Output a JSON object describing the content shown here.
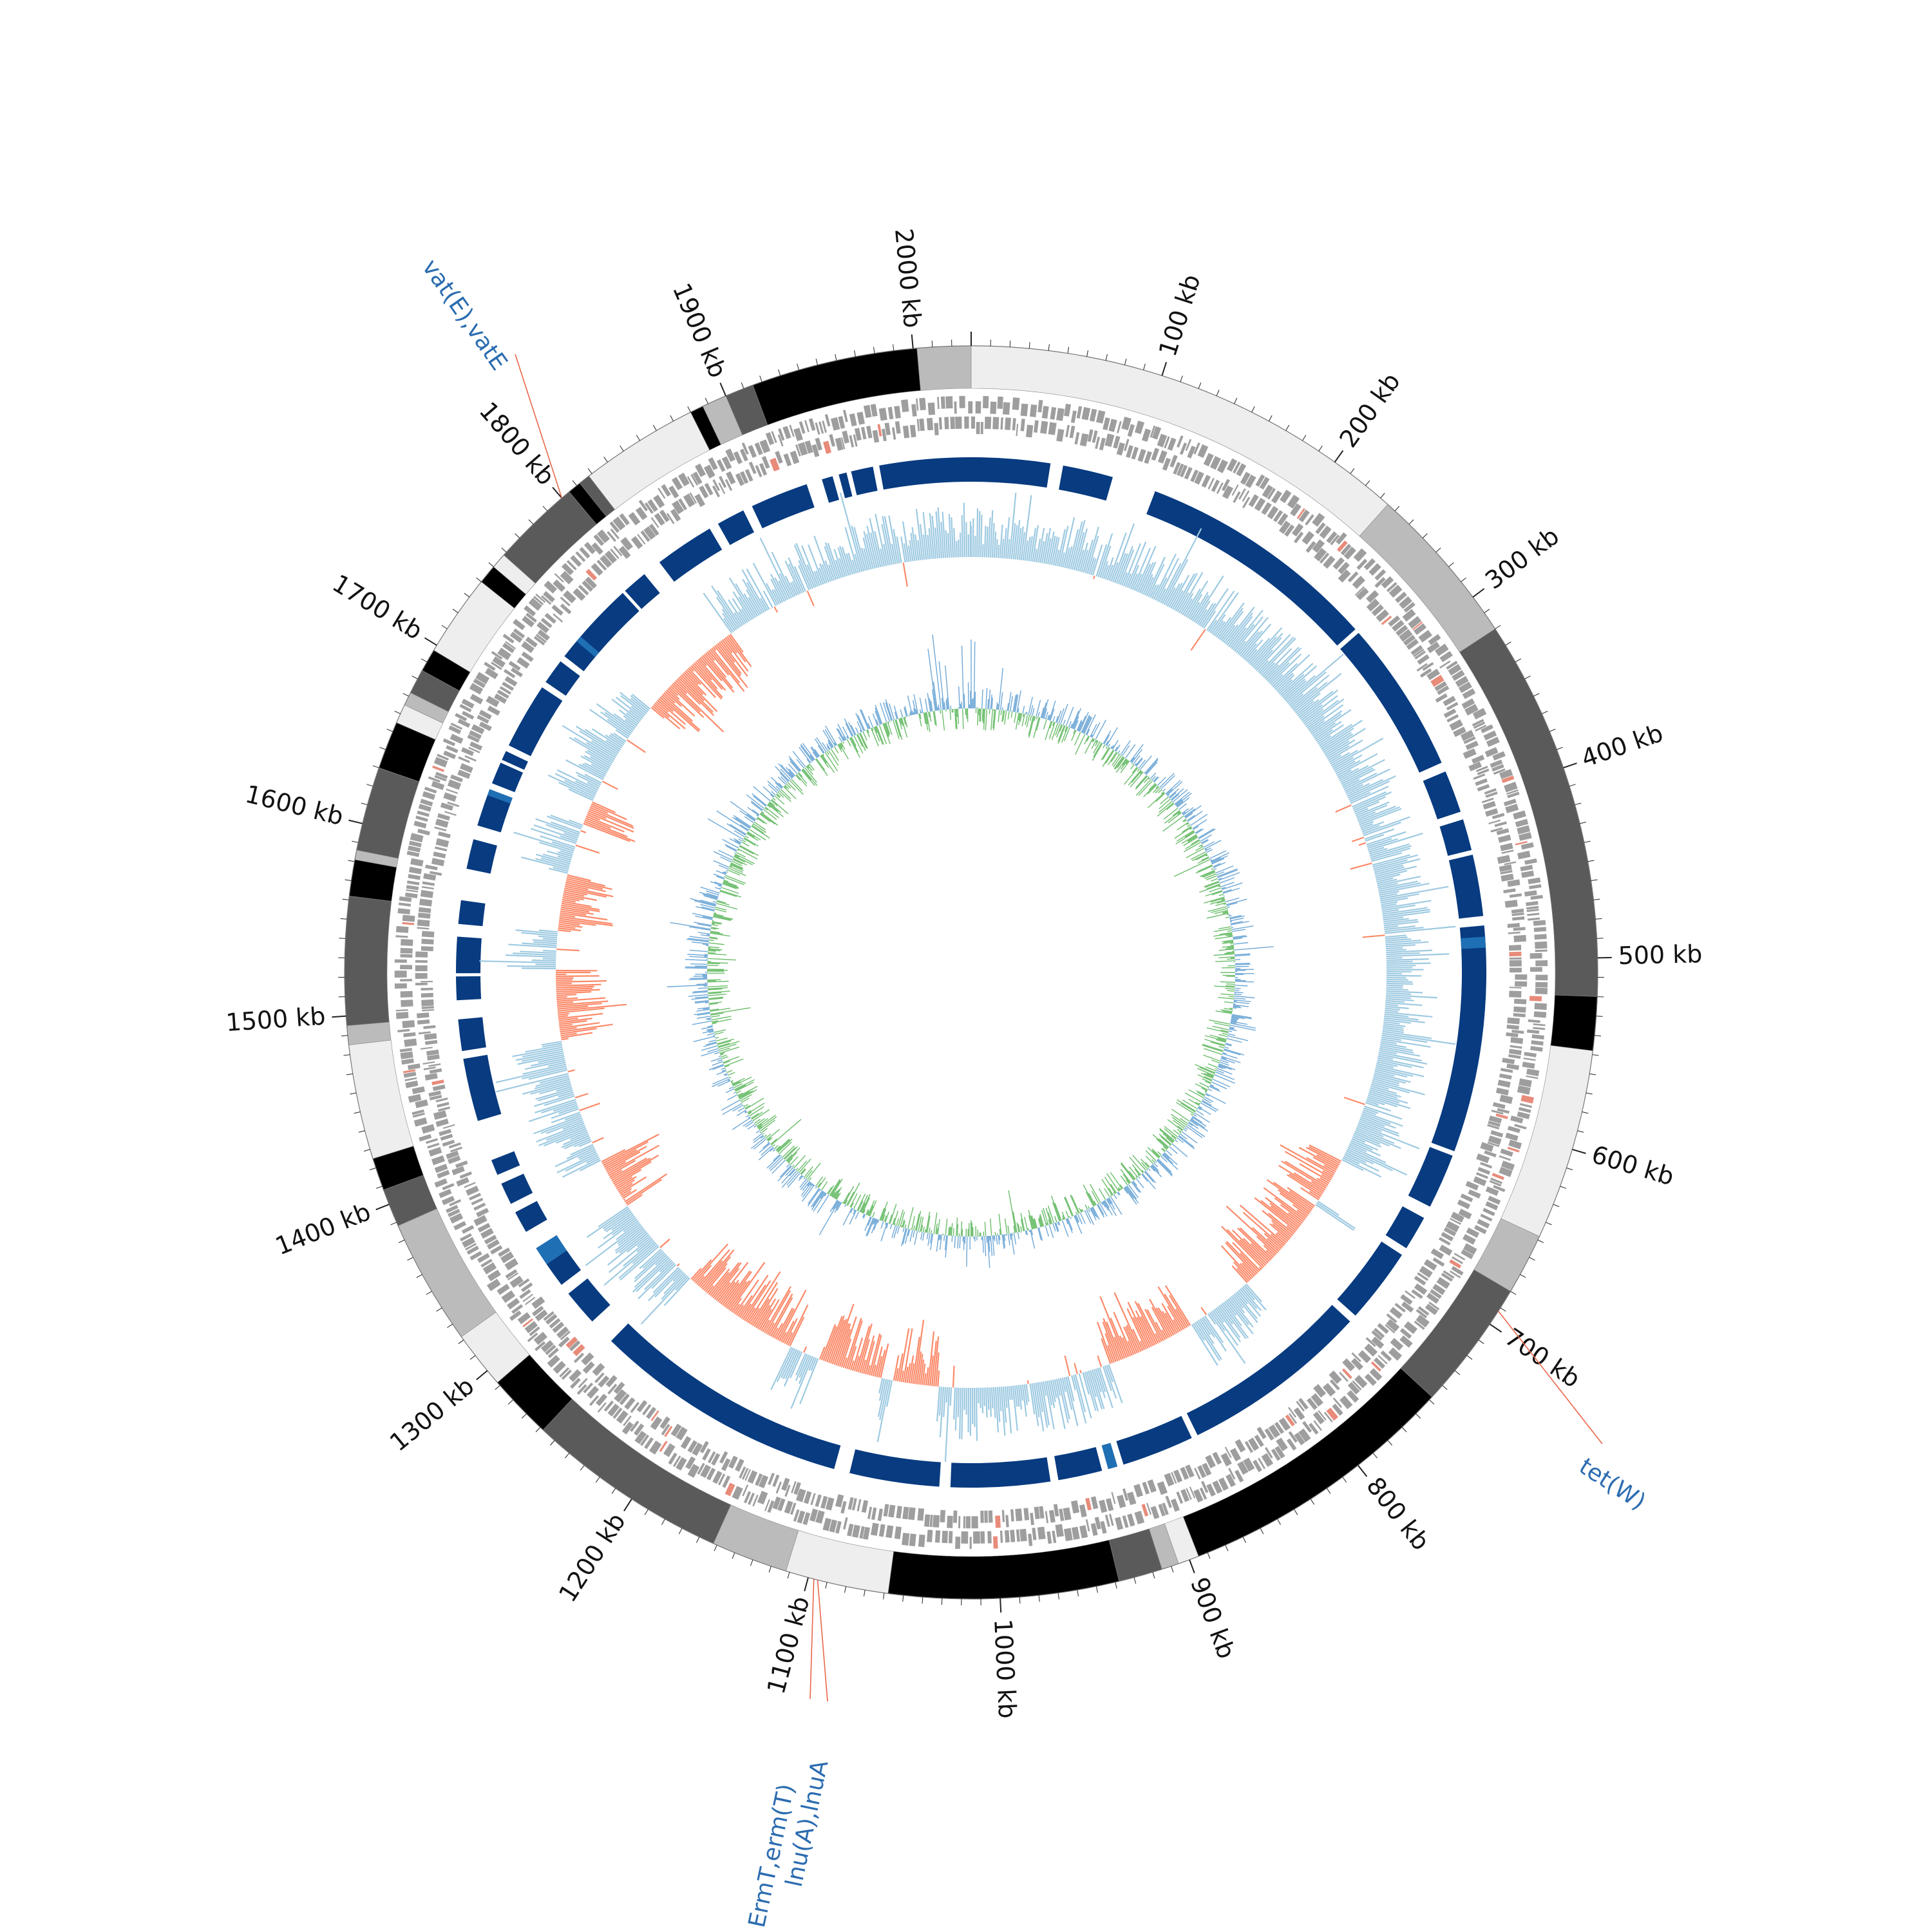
{
  "genome": {
    "size_kb": 2030,
    "tick_step_kb": 100,
    "tick_labels": [
      "100 kb",
      "200 kb",
      "300 kb",
      "400 kb",
      "500 kb",
      "600 kb",
      "700 kb",
      "800 kb",
      "900 kb",
      "1000 kb",
      "1100 kb",
      "1200 kb",
      "1300 kb",
      "1400 kb",
      "1500 kb",
      "1600 kb",
      "1700 kb",
      "1800 kb",
      "1900 kb",
      "2000 kb"
    ]
  },
  "contigs": [
    {
      "start": 0,
      "end": 235,
      "shade": "#eeeeee"
    },
    {
      "start": 235,
      "end": 320,
      "shade": "#bbbbbb"
    },
    {
      "start": 320,
      "end": 520,
      "shade": "#5a5a5a"
    },
    {
      "start": 520,
      "end": 548,
      "shade": "#000000"
    },
    {
      "start": 548,
      "end": 648,
      "shade": "#eeeeee"
    },
    {
      "start": 648,
      "end": 680,
      "shade": "#bbbbbb"
    },
    {
      "start": 680,
      "end": 748,
      "shade": "#5a5a5a"
    },
    {
      "start": 748,
      "end": 895,
      "shade": "#000000"
    },
    {
      "start": 895,
      "end": 906,
      "shade": "#eeeeee"
    },
    {
      "start": 906,
      "end": 915,
      "shade": "#bbbbbb"
    },
    {
      "start": 915,
      "end": 938,
      "shade": "#5a5a5a"
    },
    {
      "start": 938,
      "end": 1058,
      "shade": "#000000"
    },
    {
      "start": 1058,
      "end": 1112,
      "shade": "#eeeeee"
    },
    {
      "start": 1112,
      "end": 1152,
      "shade": "#bbbbbb"
    },
    {
      "start": 1152,
      "end": 1258,
      "shade": "#5a5a5a"
    },
    {
      "start": 1258,
      "end": 1292,
      "shade": "#000000"
    },
    {
      "start": 1292,
      "end": 1322,
      "shade": "#eeeeee"
    },
    {
      "start": 1322,
      "end": 1388,
      "shade": "#bbbbbb"
    },
    {
      "start": 1388,
      "end": 1408,
      "shade": "#5a5a5a"
    },
    {
      "start": 1408,
      "end": 1425,
      "shade": "#000000"
    },
    {
      "start": 1425,
      "end": 1485,
      "shade": "#eeeeee"
    },
    {
      "start": 1485,
      "end": 1495,
      "shade": "#bbbbbb"
    },
    {
      "start": 1495,
      "end": 1562,
      "shade": "#5a5a5a"
    },
    {
      "start": 1562,
      "end": 1581,
      "shade": "#000000"
    },
    {
      "start": 1581,
      "end": 1586,
      "shade": "#bbbbbb"
    },
    {
      "start": 1586,
      "end": 1630,
      "shade": "#5a5a5a"
    },
    {
      "start": 1630,
      "end": 1655,
      "shade": "#000000"
    },
    {
      "start": 1655,
      "end": 1665,
      "shade": "#eeeeee"
    },
    {
      "start": 1665,
      "end": 1672,
      "shade": "#bbbbbb"
    },
    {
      "start": 1672,
      "end": 1685,
      "shade": "#5a5a5a"
    },
    {
      "start": 1685,
      "end": 1697,
      "shade": "#000000"
    },
    {
      "start": 1697,
      "end": 1740,
      "shade": "#eeeeee"
    },
    {
      "start": 1740,
      "end": 1750,
      "shade": "#000000"
    },
    {
      "start": 1750,
      "end": 1758,
      "shade": "#eeeeee"
    },
    {
      "start": 1758,
      "end": 1805,
      "shade": "#5a5a5a"
    },
    {
      "start": 1805,
      "end": 1812,
      "shade": "#000000"
    },
    {
      "start": 1812,
      "end": 1818,
      "shade": "#5a5a5a"
    },
    {
      "start": 1818,
      "end": 1880,
      "shade": "#eeeeee"
    },
    {
      "start": 1880,
      "end": 1887,
      "shade": "#000000"
    },
    {
      "start": 1887,
      "end": 1900,
      "shade": "#bbbbbb"
    },
    {
      "start": 1900,
      "end": 1915,
      "shade": "#5a5a5a"
    },
    {
      "start": 1915,
      "end": 2002,
      "shade": "#000000"
    },
    {
      "start": 2002,
      "end": 2030,
      "shade": "#bbbbbb"
    }
  ],
  "blast_hits": [
    {
      "start": 0,
      "end": 50
    },
    {
      "start": 58,
      "end": 90
    },
    {
      "start": 118,
      "end": 272
    },
    {
      "start": 275,
      "end": 372
    },
    {
      "start": 378,
      "end": 405
    },
    {
      "start": 410,
      "end": 430
    },
    {
      "start": 433,
      "end": 472
    },
    {
      "start": 478,
      "end": 622
    },
    {
      "start": 625,
      "end": 660
    },
    {
      "start": 668,
      "end": 690
    },
    {
      "start": 695,
      "end": 743
    },
    {
      "start": 748,
      "end": 868
    },
    {
      "start": 872,
      "end": 918
    },
    {
      "start": 922,
      "end": 928
    },
    {
      "start": 932,
      "end": 960
    },
    {
      "start": 965,
      "end": 1028
    },
    {
      "start": 1035,
      "end": 1092
    },
    {
      "start": 1102,
      "end": 1265
    },
    {
      "start": 1282,
      "end": 1305
    },
    {
      "start": 1312,
      "end": 1328
    },
    {
      "start": 1352,
      "end": 1366
    },
    {
      "start": 1372,
      "end": 1386
    },
    {
      "start": 1392,
      "end": 1402
    },
    {
      "start": 1428,
      "end": 1468
    },
    {
      "start": 1473,
      "end": 1493
    },
    {
      "start": 1505,
      "end": 1520
    },
    {
      "start": 1522,
      "end": 1545
    },
    {
      "start": 1553,
      "end": 1568
    },
    {
      "start": 1588,
      "end": 1607
    },
    {
      "start": 1616,
      "end": 1640
    },
    {
      "start": 1644,
      "end": 1658
    },
    {
      "start": 1660,
      "end": 1666
    },
    {
      "start": 1670,
      "end": 1712
    },
    {
      "start": 1716,
      "end": 1732
    },
    {
      "start": 1736,
      "end": 1790
    },
    {
      "start": 1792,
      "end": 1808
    },
    {
      "start": 1820,
      "end": 1858
    },
    {
      "start": 1864,
      "end": 1882
    },
    {
      "start": 1888,
      "end": 1925
    },
    {
      "start": 1935,
      "end": 1942
    },
    {
      "start": 1946,
      "end": 1951
    },
    {
      "start": 1954,
      "end": 1968
    },
    {
      "start": 1972,
      "end": 2030
    }
  ],
  "gc_content_dips": [
    {
      "start": 660,
      "end": 695
    },
    {
      "start": 700,
      "end": 780
    },
    {
      "start": 835,
      "end": 905
    },
    {
      "start": 1040,
      "end": 1075
    },
    {
      "start": 1085,
      "end": 1135
    },
    {
      "start": 1160,
      "end": 1255
    },
    {
      "start": 1330,
      "end": 1370
    },
    {
      "start": 1470,
      "end": 1525
    },
    {
      "start": 1555,
      "end": 1600
    },
    {
      "start": 1640,
      "end": 1660
    },
    {
      "start": 1745,
      "end": 1770
    },
    {
      "start": 1770,
      "end": 1830
    }
  ],
  "resistance_genes": [
    {
      "name": "tet(W)",
      "position_kb": 692
    },
    {
      "name": "ErmT,erm(T)",
      "position_kb": 1097
    },
    {
      "name": "lnu(A),lnuA",
      "position_kb": 1095
    },
    {
      "name": "vat(E),vatE",
      "position_kb": 1800
    }
  ],
  "colors": {
    "cds": "#9e9e9e",
    "blast": "#083b80",
    "blast_alt": "#1f6fb4",
    "gc_positive": "#9ecae1",
    "gc_negative": "#fb8a6a",
    "gc_skew_positive": "#6cbd6c",
    "gc_skew_negative": "#6fa8d6",
    "label": "#2b6cb0",
    "pointer": "#e8664a"
  }
}
